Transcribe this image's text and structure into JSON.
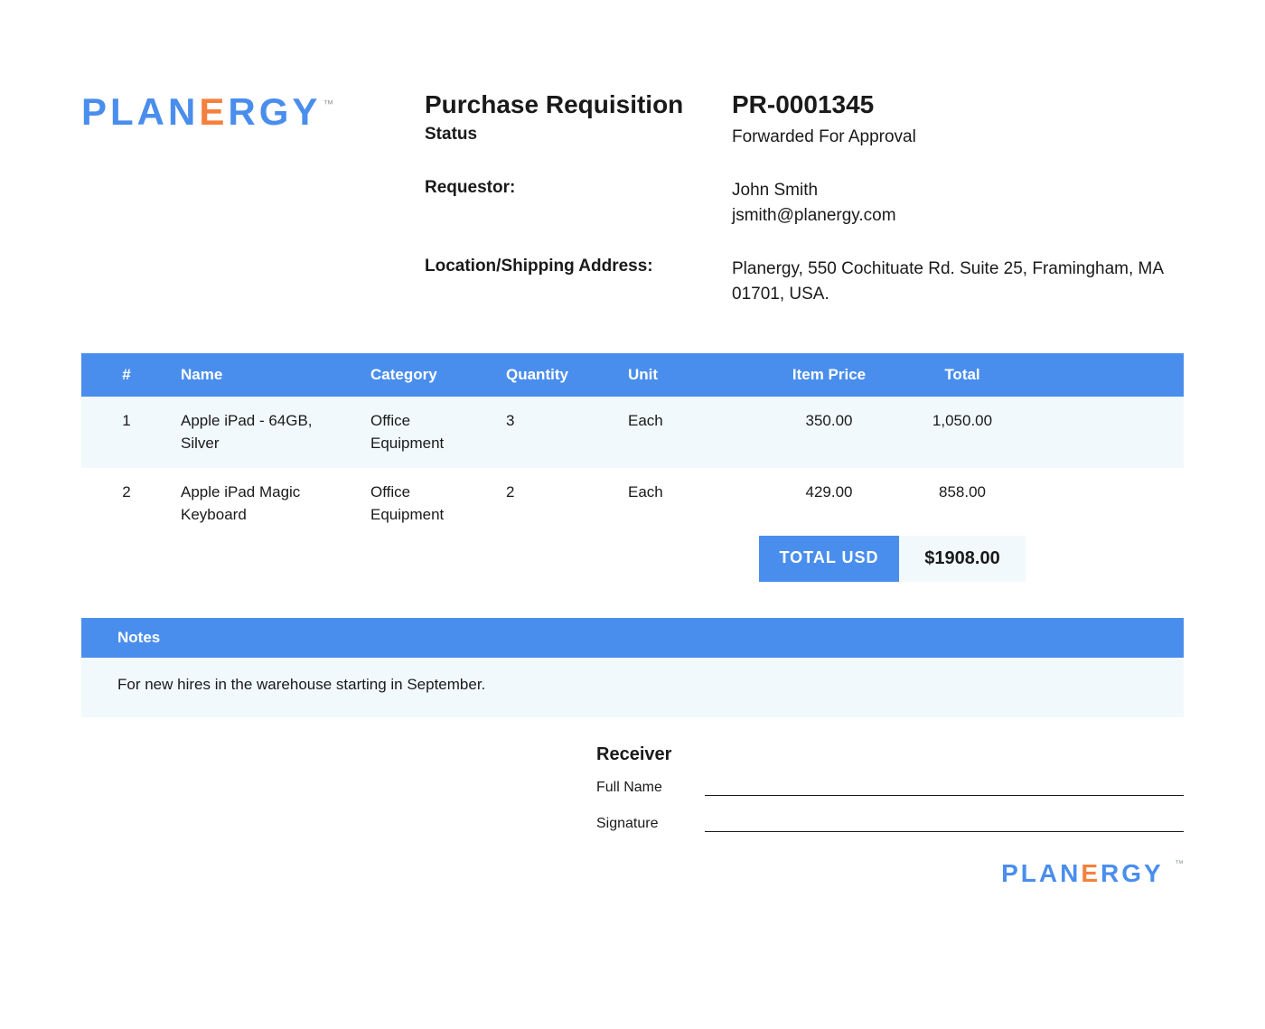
{
  "brand": {
    "name_pre": "PLAN",
    "name_accent": "E",
    "name_post": "RGY",
    "tm": "™",
    "color_primary": "#4a8eed",
    "color_accent": "#f5803e"
  },
  "header": {
    "title": "Purchase Requisition",
    "pr_number": "PR-0001345",
    "status_label": "Status",
    "status_value": "Forwarded For Approval",
    "requestor_label": "Requestor:",
    "requestor_name": "John Smith",
    "requestor_email": "jsmith@planergy.com",
    "location_label": "Location/Shipping Address:",
    "location_value": "Planergy, 550 Cochituate Rd. Suite 25, Framingham, MA 01701, USA."
  },
  "table": {
    "columns": [
      "#",
      "Name",
      "Category",
      "Quantity",
      "Unit",
      "Item Price",
      "Total"
    ],
    "rows": [
      {
        "num": "1",
        "name": "Apple iPad - 64GB, Silver",
        "category": "Office Equipment",
        "quantity": "3",
        "unit": "Each",
        "item_price": "350.00",
        "total": "1,050.00"
      },
      {
        "num": "2",
        "name": "Apple iPad Magic Keyboard",
        "category": "Office Equipment",
        "quantity": "2",
        "unit": "Each",
        "item_price": "429.00",
        "total": "858.00"
      }
    ],
    "total_label": "TOTAL USD",
    "total_value": "$1908.00",
    "header_bg": "#4a8eed",
    "header_fg": "#ffffff",
    "row_alt_bg": "#f2f9fc"
  },
  "notes": {
    "header": "Notes",
    "body": "For new hires in the warehouse starting in September."
  },
  "receiver": {
    "title": "Receiver",
    "fullname_label": "Full Name",
    "signature_label": "Signature"
  }
}
